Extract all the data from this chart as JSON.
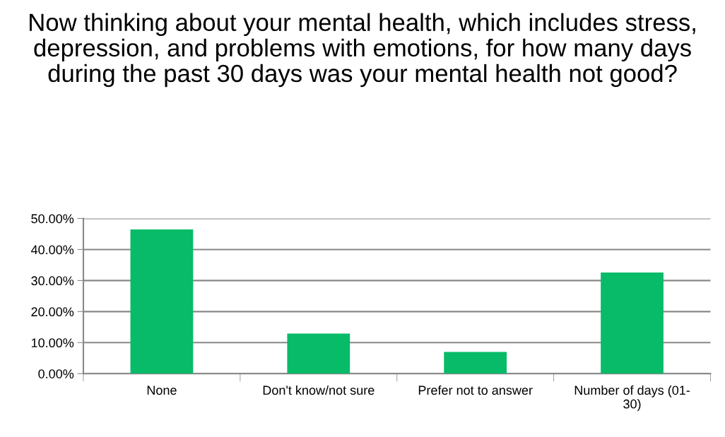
{
  "chart_data": {
    "type": "bar",
    "title": "Now thinking about your mental health, which includes stress, depression, and problems with emotions, for how many days during the past 30 days was your mental health not good?",
    "categories": [
      "None",
      "Don't know/not sure",
      "Prefer not to answer",
      "Number of days (01-30)"
    ],
    "values": [
      46.5,
      12.9,
      7.0,
      32.6
    ],
    "color": "#07bb68",
    "ylim": [
      0,
      50
    ],
    "yticks": [
      {
        "value": 0,
        "label": "0.00%"
      },
      {
        "value": 10,
        "label": "10.00%"
      },
      {
        "value": 20,
        "label": "20.00%"
      },
      {
        "value": 30,
        "label": "30.00%"
      },
      {
        "value": 40,
        "label": "40.00%"
      },
      {
        "value": 50,
        "label": "50.00%"
      }
    ],
    "grid": "y",
    "legend": false
  }
}
